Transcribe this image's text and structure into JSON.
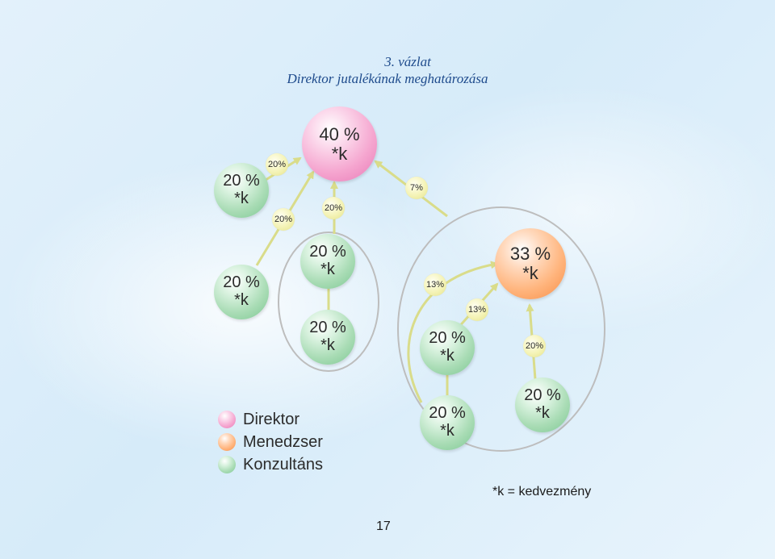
{
  "title": {
    "line1": "3. vázlat",
    "line2": "Direktor jutalékának meghatározása"
  },
  "nodes": [
    {
      "id": "direktor-top",
      "role": "Direktor",
      "pct": "40 %",
      "k": "*k"
    },
    {
      "id": "left-top",
      "role": "Konzultáns",
      "pct": "20 %",
      "k": "*k"
    },
    {
      "id": "left-mid",
      "role": "Konzultáns",
      "pct": "20 %",
      "k": "*k"
    },
    {
      "id": "center-upper",
      "role": "Konzultáns",
      "pct": "20 %",
      "k": "*k"
    },
    {
      "id": "center-lower",
      "role": "Konzultáns",
      "pct": "20 %",
      "k": "*k"
    },
    {
      "id": "manager",
      "role": "Menedzser",
      "pct": "33 %",
      "k": "*k"
    },
    {
      "id": "right-mid",
      "role": "Konzultáns",
      "pct": "20 %",
      "k": "*k"
    },
    {
      "id": "right-bottom-left",
      "role": "Konzultáns",
      "pct": "20 %",
      "k": "*k"
    },
    {
      "id": "right-bottom-right",
      "role": "Konzultáns",
      "pct": "20 %",
      "k": "*k"
    }
  ],
  "edge_labels": {
    "top_left": "20%",
    "left_lower": "20%",
    "center": "20%",
    "right_group": "7%",
    "sub_left": "13%",
    "sub_mid": "13%",
    "sub_right": "20%"
  },
  "legend": [
    {
      "label": "Direktor",
      "color": "#f5a5cf"
    },
    {
      "label": "Menedzser",
      "color": "#ffb47c"
    },
    {
      "label": "Konzultáns",
      "color": "#a9dcb5"
    }
  ],
  "note": "*k = kedvezmény",
  "page_number": "17",
  "colors": {
    "arrow": "#d9dc8a",
    "group_outline": "#bdbdbd",
    "title": "#1d4a8c"
  }
}
